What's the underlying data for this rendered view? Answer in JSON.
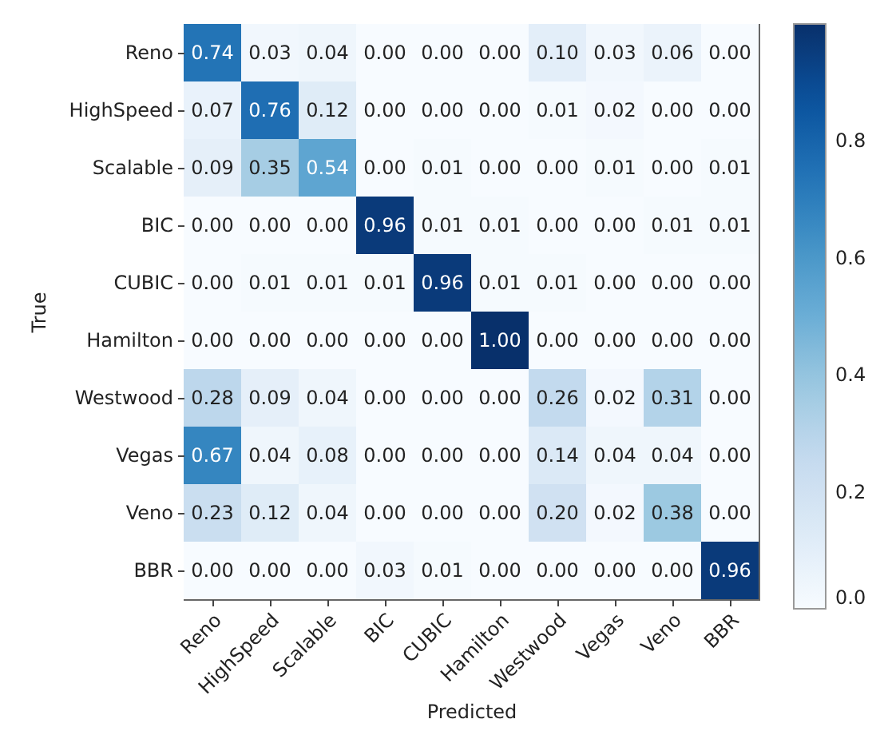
{
  "chart_data": {
    "type": "heatmap",
    "xlabel": "Predicted",
    "ylabel": "True",
    "categories": [
      "Reno",
      "HighSpeed",
      "Scalable",
      "BIC",
      "CUBIC",
      "Hamilton",
      "Westwood",
      "Vegas",
      "Veno",
      "BBR"
    ],
    "y_categories": [
      "Reno",
      "HighSpeed",
      "Scalable",
      "BIC",
      "CUBIC",
      "Hamilton",
      "Westwood",
      "Vegas",
      "Veno",
      "BBR"
    ],
    "cells": [
      [
        0.74,
        0.03,
        0.04,
        0.0,
        0.0,
        0.0,
        0.1,
        0.03,
        0.06,
        0.0
      ],
      [
        0.07,
        0.76,
        0.12,
        0.0,
        0.0,
        0.0,
        0.01,
        0.02,
        0.0,
        0.0
      ],
      [
        0.09,
        0.35,
        0.54,
        0.0,
        0.01,
        0.0,
        0.0,
        0.01,
        0.0,
        0.01
      ],
      [
        0.0,
        0.0,
        0.0,
        0.96,
        0.01,
        0.01,
        0.0,
        0.0,
        0.01,
        0.01
      ],
      [
        0.0,
        0.01,
        0.01,
        0.01,
        0.96,
        0.01,
        0.01,
        0.0,
        0.0,
        0.0
      ],
      [
        0.0,
        0.0,
        0.0,
        0.0,
        0.0,
        1.0,
        0.0,
        0.0,
        0.0,
        0.0
      ],
      [
        0.28,
        0.09,
        0.04,
        0.0,
        0.0,
        0.0,
        0.26,
        0.02,
        0.31,
        0.0
      ],
      [
        0.67,
        0.04,
        0.08,
        0.0,
        0.0,
        0.0,
        0.14,
        0.04,
        0.04,
        0.0
      ],
      [
        0.23,
        0.12,
        0.04,
        0.0,
        0.0,
        0.0,
        0.2,
        0.02,
        0.38,
        0.0
      ],
      [
        0.0,
        0.0,
        0.0,
        0.03,
        0.01,
        0.0,
        0.0,
        0.0,
        0.0,
        0.96
      ]
    ],
    "cell_labels": [
      [
        "0.74",
        "0.03",
        "0.04",
        "0.00",
        "0.00",
        "0.00",
        "0.10",
        "0.03",
        "0.06",
        "0.00"
      ],
      [
        "0.07",
        "0.76",
        "0.12",
        "0.00",
        "0.00",
        "0.00",
        "0.01",
        "0.02",
        "0.00",
        "0.00"
      ],
      [
        "0.09",
        "0.35",
        "0.54",
        "0.00",
        "0.01",
        "0.00",
        "0.00",
        "0.01",
        "0.00",
        "0.01"
      ],
      [
        "0.00",
        "0.00",
        "0.00",
        "0.96",
        "0.01",
        "0.01",
        "0.00",
        "0.00",
        "0.01",
        "0.01"
      ],
      [
        "0.00",
        "0.01",
        "0.01",
        "0.01",
        "0.96",
        "0.01",
        "0.01",
        "0.00",
        "0.00",
        "0.00"
      ],
      [
        "0.00",
        "0.00",
        "0.00",
        "0.00",
        "0.00",
        "1.00",
        "0.00",
        "0.00",
        "0.00",
        "0.00"
      ],
      [
        "0.28",
        "0.09",
        "0.04",
        "0.00",
        "0.00",
        "0.00",
        "0.26",
        "0.02",
        "0.31",
        "0.00"
      ],
      [
        "0.67",
        "0.04",
        "0.08",
        "0.00",
        "0.00",
        "0.00",
        "0.14",
        "0.04",
        "0.04",
        "0.00"
      ],
      [
        "0.23",
        "0.12",
        "0.04",
        "0.00",
        "0.00",
        "0.00",
        "0.20",
        "0.02",
        "0.38",
        "0.00"
      ],
      [
        "0.00",
        "0.00",
        "0.00",
        "0.03",
        "0.01",
        "0.00",
        "0.00",
        "0.00",
        "0.00",
        "0.96"
      ]
    ],
    "clim": [
      0,
      1
    ],
    "cticks": [
      {
        "value": 0,
        "label": "0.0"
      },
      0.2,
      0.4,
      0.6,
      0.8
    ]
  }
}
